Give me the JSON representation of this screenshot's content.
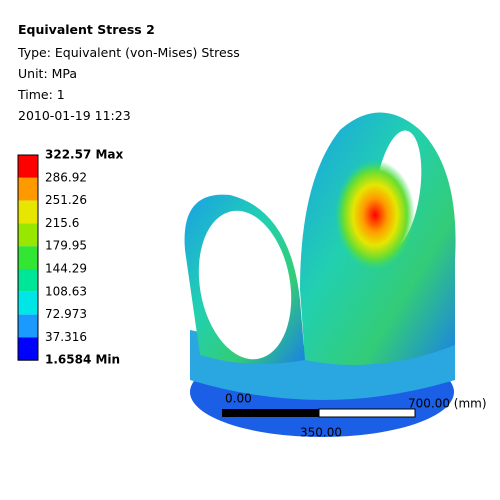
{
  "header": {
    "title": "Equivalent Stress 2",
    "lines": [
      "Type: Equivalent (von-Mises) Stress",
      "Unit: MPa",
      "Time: 1",
      "2010-01-19 11:23"
    ]
  },
  "legend": {
    "labels": [
      "322.57 Max",
      "286.92",
      "251.26",
      "215.6",
      "179.95",
      "144.29",
      "108.63",
      "72.973",
      "37.316",
      "1.6584 Min"
    ],
    "colors": [
      "#ff0000",
      "#ff9900",
      "#e6e600",
      "#99e600",
      "#33e633",
      "#00e699",
      "#00e6e6",
      "#1a99ff",
      "#0000ff"
    ]
  },
  "scale_bar": {
    "start": "0.00",
    "end": "700.00 (mm)",
    "middle": "350.00"
  }
}
